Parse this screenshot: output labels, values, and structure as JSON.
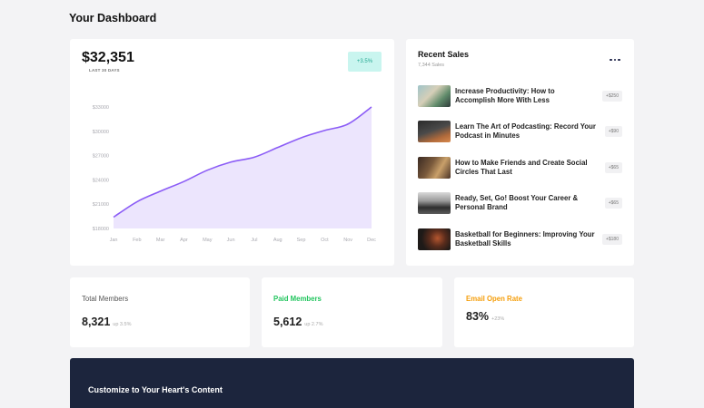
{
  "page": {
    "title": "Your Dashboard"
  },
  "revenue": {
    "amount": "$32,351",
    "period": "LAST 30 DAYS",
    "badge": "+3.5%"
  },
  "chart_data": {
    "type": "area",
    "x": [
      "Jan",
      "Feb",
      "Mar",
      "Apr",
      "May",
      "Jun",
      "Jul",
      "Aug",
      "Sep",
      "Oct",
      "Nov",
      "Dec"
    ],
    "series": [
      {
        "values": [
          19400,
          21300,
          22600,
          23800,
          25200,
          26200,
          26800,
          28000,
          29200,
          30100,
          30900,
          33000
        ]
      }
    ],
    "yticks": [
      "$33000",
      "$30000",
      "$27000",
      "$24000",
      "$21000",
      "$18000"
    ],
    "ylim": [
      18000,
      33000
    ],
    "colors": {
      "line": "#8b5cf6",
      "fill": "#ece5fd"
    }
  },
  "sales": {
    "title": "Recent Sales",
    "subtitle": "7,344 Sales",
    "items": [
      {
        "title": "Increase Productivity: How to Accomplish More With Less",
        "amount": "+$250"
      },
      {
        "title": "Learn The Art of Podcasting: Record Your Podcast in Minutes",
        "amount": "+$90"
      },
      {
        "title": "How to Make Friends and Create Social Circles That Last",
        "amount": "+$65"
      },
      {
        "title": "Ready, Set, Go! Boost Your Career & Personal Brand",
        "amount": "+$65"
      },
      {
        "title": "Basketball for Beginners: Improving Your Basketball Skills",
        "amount": "+$180"
      }
    ]
  },
  "stats": [
    {
      "label": "Total Members",
      "value": "8,321",
      "delta": "up 3.5%",
      "color": "#555555"
    },
    {
      "label": "Paid Members",
      "value": "5,612",
      "delta": "up 2.7%",
      "color": "#22c55e"
    },
    {
      "label": "Email Open Rate",
      "value": "83%",
      "delta": "+23%",
      "color": "#f59e0b"
    }
  ],
  "banner": {
    "title": "Customize to Your Heart's Content"
  }
}
